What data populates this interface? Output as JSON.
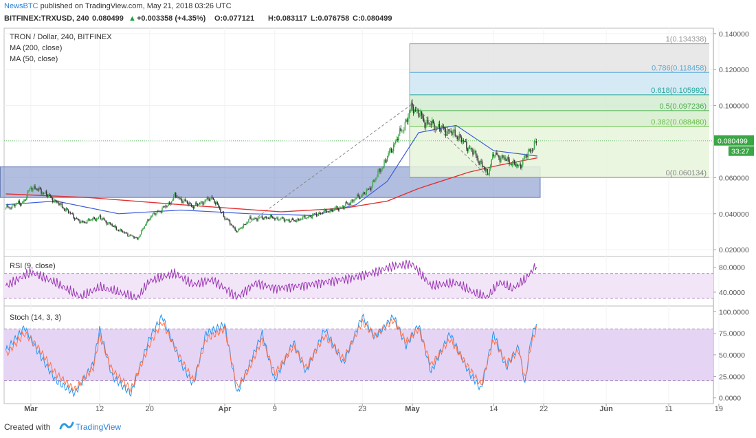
{
  "header": {
    "author": "NewsBTC",
    "published": "published on TradingView.com, May 21, 2018 03:26 UTC"
  },
  "symbol_bar": {
    "symbol": "BITFINEX:TRXUSD, 240",
    "last": "0.080499",
    "change": "+0.003358 (+4.35%)",
    "open": "O:0.077121",
    "high": "H:0.083117",
    "low": "L:0.076758",
    "close": "C:0.080499"
  },
  "legend": {
    "title": "TRON / Dollar, 240, BITFINEX",
    "ma200": "MA (200, close)",
    "ma50": "MA (50, close)",
    "rsi": "RSI (9, close)",
    "stoch": "Stoch (14, 3, 3)"
  },
  "price_badge": {
    "price": "0.080499",
    "countdown": "33:27"
  },
  "footer": {
    "created_with": "Created with",
    "brand": "TradingView"
  },
  "colors": {
    "candle_up": "#3aa645",
    "candle_down": "#333333",
    "ma200": "#e03131",
    "ma50": "#3b5bdb",
    "rsi": "#9c36b5",
    "stoch_k": "#2196f3",
    "stoch_d": "#ff7043",
    "zone": "#7f93c9",
    "fib_green": "#6abf4b",
    "fib_blue": "#5aa9d6",
    "fib_gray": "#9a9a9a"
  },
  "chart_data": [
    {
      "type": "candlestick",
      "title": "TRON / Dollar, 240, BITFINEX",
      "x_ticks": [
        "Mar",
        "12",
        "20",
        "Apr",
        "9",
        "23",
        "May",
        "14",
        "22",
        "Jun",
        "11",
        "19"
      ],
      "y_ticks": [
        "0.140000",
        "0.120000",
        "0.100000",
        "0.080000",
        "0.060000",
        "0.040000",
        "0.020000"
      ],
      "ylim": [
        0.017,
        0.143
      ],
      "price_path": [
        [
          "Feb 25",
          0.043
        ],
        [
          "Feb 28",
          0.047
        ],
        [
          "Mar 1",
          0.055
        ],
        [
          "Mar 3",
          0.052
        ],
        [
          "Mar 6",
          0.044
        ],
        [
          "Mar 9",
          0.035
        ],
        [
          "Mar 12",
          0.038
        ],
        [
          "Mar 15",
          0.031
        ],
        [
          "Mar 18",
          0.026
        ],
        [
          "Mar 20",
          0.038
        ],
        [
          "Mar 23",
          0.045
        ],
        [
          "Mar 24",
          0.05
        ],
        [
          "Mar 27",
          0.044
        ],
        [
          "Mar 30",
          0.049
        ],
        [
          "Apr 1",
          0.038
        ],
        [
          "Apr 3",
          0.03
        ],
        [
          "Apr 5",
          0.037
        ],
        [
          "Apr 8",
          0.038
        ],
        [
          "Apr 12",
          0.036
        ],
        [
          "Apr 16",
          0.04
        ],
        [
          "Apr 20",
          0.044
        ],
        [
          "Apr 24",
          0.053
        ],
        [
          "Apr 26",
          0.065
        ],
        [
          "Apr 28",
          0.078
        ],
        [
          "Apr 30",
          0.091
        ],
        [
          "May 1",
          0.1
        ],
        [
          "May 3",
          0.091
        ],
        [
          "May 5",
          0.088
        ],
        [
          "May 8",
          0.084
        ],
        [
          "May 11",
          0.073
        ],
        [
          "May 13",
          0.062
        ],
        [
          "May 14",
          0.073
        ],
        [
          "May 16",
          0.07
        ],
        [
          "May 18",
          0.066
        ],
        [
          "May 20",
          0.076
        ],
        [
          "May 21",
          0.0805
        ]
      ],
      "ma50_path": [
        [
          "Feb 25",
          0.045
        ],
        [
          "Mar 5",
          0.047
        ],
        [
          "Mar 15",
          0.04
        ],
        [
          "Mar 25",
          0.042
        ],
        [
          "Apr 5",
          0.04
        ],
        [
          "Apr 15",
          0.039
        ],
        [
          "Apr 22",
          0.045
        ],
        [
          "Apr 27",
          0.058
        ],
        [
          "May 2",
          0.085
        ],
        [
          "May 8",
          0.089
        ],
        [
          "May 14",
          0.075
        ],
        [
          "May 21",
          0.072
        ]
      ],
      "ma200_path": [
        [
          "Feb 25",
          0.051
        ],
        [
          "Mar 10",
          0.049
        ],
        [
          "Mar 25",
          0.045
        ],
        [
          "Apr 10",
          0.041
        ],
        [
          "Apr 20",
          0.043
        ],
        [
          "Apr 27",
          0.047
        ],
        [
          "May 2",
          0.054
        ],
        [
          "May 10",
          0.063
        ],
        [
          "May 15",
          0.067
        ],
        [
          "May 21",
          0.071
        ]
      ],
      "support_zone": {
        "from": "Feb 25",
        "to": "May 21",
        "low": 0.049,
        "high": 0.066
      },
      "fibonacci": {
        "levels": [
          {
            "ratio": "0",
            "value": 0.060134,
            "label": "0(0.060134)"
          },
          {
            "ratio": "0.382",
            "value": 0.08848,
            "label": "0.382(0.088480)"
          },
          {
            "ratio": "0.5",
            "value": 0.097236,
            "label": "0.5(0.097236)"
          },
          {
            "ratio": "0.618",
            "value": 0.105992,
            "label": "0.618(0.105992)"
          },
          {
            "ratio": "0.786",
            "value": 0.118458,
            "label": "0.786(0.118458)"
          },
          {
            "ratio": "1",
            "value": 0.134338,
            "label": "1(0.134338)"
          }
        ]
      },
      "last_price": 0.080499
    },
    {
      "type": "line",
      "title": "RSI (9, close)",
      "y_ticks": [
        "80.0000",
        "40.0000"
      ],
      "ylim": [
        20,
        95
      ],
      "band": [
        30,
        70
      ],
      "values": [
        [
          "Feb 25",
          50
        ],
        [
          "Mar 1",
          72
        ],
        [
          "Mar 5",
          55
        ],
        [
          "Mar 9",
          32
        ],
        [
          "Mar 12",
          48
        ],
        [
          "Mar 15",
          40
        ],
        [
          "Mar 18",
          30
        ],
        [
          "Mar 20",
          58
        ],
        [
          "Mar 24",
          70
        ],
        [
          "Mar 27",
          52
        ],
        [
          "Mar 30",
          60
        ],
        [
          "Apr 3",
          32
        ],
        [
          "Apr 6",
          55
        ],
        [
          "Apr 9",
          46
        ],
        [
          "Apr 13",
          50
        ],
        [
          "Apr 17",
          56
        ],
        [
          "Apr 21",
          62
        ],
        [
          "Apr 25",
          72
        ],
        [
          "Apr 28",
          82
        ],
        [
          "May 1",
          85
        ],
        [
          "May 4",
          50
        ],
        [
          "May 8",
          55
        ],
        [
          "May 11",
          38
        ],
        [
          "May 13",
          32
        ],
        [
          "May 15",
          56
        ],
        [
          "May 17",
          45
        ],
        [
          "May 19",
          60
        ],
        [
          "May 21",
          85
        ]
      ]
    },
    {
      "type": "line",
      "title": "Stoch (14, 3, 3)",
      "y_ticks": [
        "100.0000",
        "75.0000",
        "50.0000",
        "25.0000",
        "0.0000"
      ],
      "ylim": [
        -5,
        105
      ],
      "band": [
        20,
        80
      ],
      "series": [
        {
          "values": [
            [
              "Feb 25",
              55
            ],
            [
              "Feb 28",
              82
            ],
            [
              "Mar 2",
              55
            ],
            [
              "Mar 5",
              20
            ],
            [
              "Mar 8",
              5
            ],
            [
              "Mar 11",
              40
            ],
            [
              "Mar 12",
              80
            ],
            [
              "Mar 14",
              25
            ],
            [
              "Mar 17",
              5
            ],
            [
              "Mar 20",
              70
            ],
            [
              "Mar 22",
              95
            ],
            [
              "Mar 25",
              40
            ],
            [
              "Mar 27",
              15
            ],
            [
              "Mar 29",
              75
            ],
            [
              "Apr 1",
              85
            ],
            [
              "Apr 3",
              5
            ],
            [
              "Apr 5",
              40
            ],
            [
              "Apr 7",
              75
            ],
            [
              "Apr 9",
              20
            ],
            [
              "Apr 12",
              65
            ],
            [
              "Apr 14",
              30
            ],
            [
              "Apr 17",
              80
            ],
            [
              "Apr 20",
              40
            ],
            [
              "Apr 23",
              95
            ],
            [
              "Apr 25",
              70
            ],
            [
              "Apr 28",
              95
            ],
            [
              "Apr 30",
              60
            ],
            [
              "May 2",
              85
            ],
            [
              "May 4",
              30
            ],
            [
              "May 7",
              75
            ],
            [
              "May 10",
              30
            ],
            [
              "May 12",
              10
            ],
            [
              "May 14",
              75
            ],
            [
              "May 16",
              35
            ],
            [
              "May 18",
              60
            ],
            [
              "May 19",
              15
            ],
            [
              "May 20",
              70
            ],
            [
              "May 21",
              90
            ]
          ]
        },
        {
          "values": [
            [
              "Feb 25",
              50
            ],
            [
              "Feb 28",
              75
            ],
            [
              "Mar 2",
              60
            ],
            [
              "Mar 5",
              28
            ],
            [
              "Mar 8",
              10
            ],
            [
              "Mar 11",
              35
            ],
            [
              "Mar 12",
              72
            ],
            [
              "Mar 14",
              32
            ],
            [
              "Mar 17",
              10
            ],
            [
              "Mar 20",
              62
            ],
            [
              "Mar 22",
              88
            ],
            [
              "Mar 25",
              45
            ],
            [
              "Mar 27",
              20
            ],
            [
              "Mar 29",
              68
            ],
            [
              "Apr 1",
              80
            ],
            [
              "Apr 3",
              12
            ],
            [
              "Apr 5",
              35
            ],
            [
              "Apr 7",
              68
            ],
            [
              "Apr 9",
              28
            ],
            [
              "Apr 12",
              60
            ],
            [
              "Apr 14",
              35
            ],
            [
              "Apr 17",
              72
            ],
            [
              "Apr 20",
              45
            ],
            [
              "Apr 23",
              88
            ],
            [
              "Apr 25",
              72
            ],
            [
              "Apr 28",
              90
            ],
            [
              "Apr 30",
              65
            ],
            [
              "May 2",
              80
            ],
            [
              "May 4",
              38
            ],
            [
              "May 7",
              68
            ],
            [
              "May 10",
              35
            ],
            [
              "May 12",
              15
            ],
            [
              "May 14",
              68
            ],
            [
              "May 16",
              40
            ],
            [
              "May 18",
              55
            ],
            [
              "May 19",
              22
            ],
            [
              "May 20",
              62
            ],
            [
              "May 21",
              85
            ]
          ]
        }
      ]
    }
  ]
}
